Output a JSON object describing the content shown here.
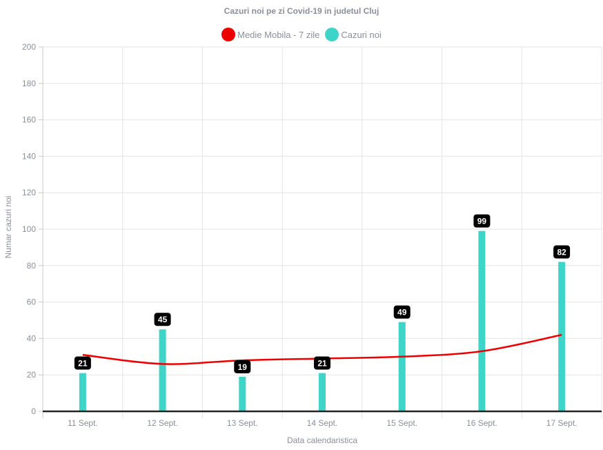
{
  "colors": {
    "moving_average": "#ee0000",
    "new_cases": "#3fd4c8",
    "grid": "#e4e4e4",
    "axis": "#222222",
    "label_bg": "#000000"
  },
  "chart_data": {
    "type": "bar",
    "title": "Cazuri noi pe zi Covid-19 in judetul Cluj",
    "xlabel": "Data calendaristica",
    "ylabel": "Numar cazuri noi",
    "ylim": [
      0,
      200
    ],
    "y_ticks": [
      0,
      20,
      40,
      60,
      80,
      100,
      120,
      140,
      160,
      180,
      200
    ],
    "grid": true,
    "legend_position": "top-center",
    "categories": [
      "11 Sept.",
      "12 Sept.",
      "13 Sept.",
      "14 Sept.",
      "15 Sept.",
      "16 Sept.",
      "17 Sept."
    ],
    "series": [
      {
        "name": "Medie Mobila - 7 zile",
        "type": "line",
        "color": "#ee0000",
        "values": [
          31,
          26,
          28,
          29,
          30,
          33,
          42
        ]
      },
      {
        "name": "Cazuri noi",
        "type": "bar",
        "color": "#3fd4c8",
        "values": [
          21,
          45,
          19,
          21,
          49,
          99,
          82
        ],
        "data_labels": true
      }
    ]
  }
}
